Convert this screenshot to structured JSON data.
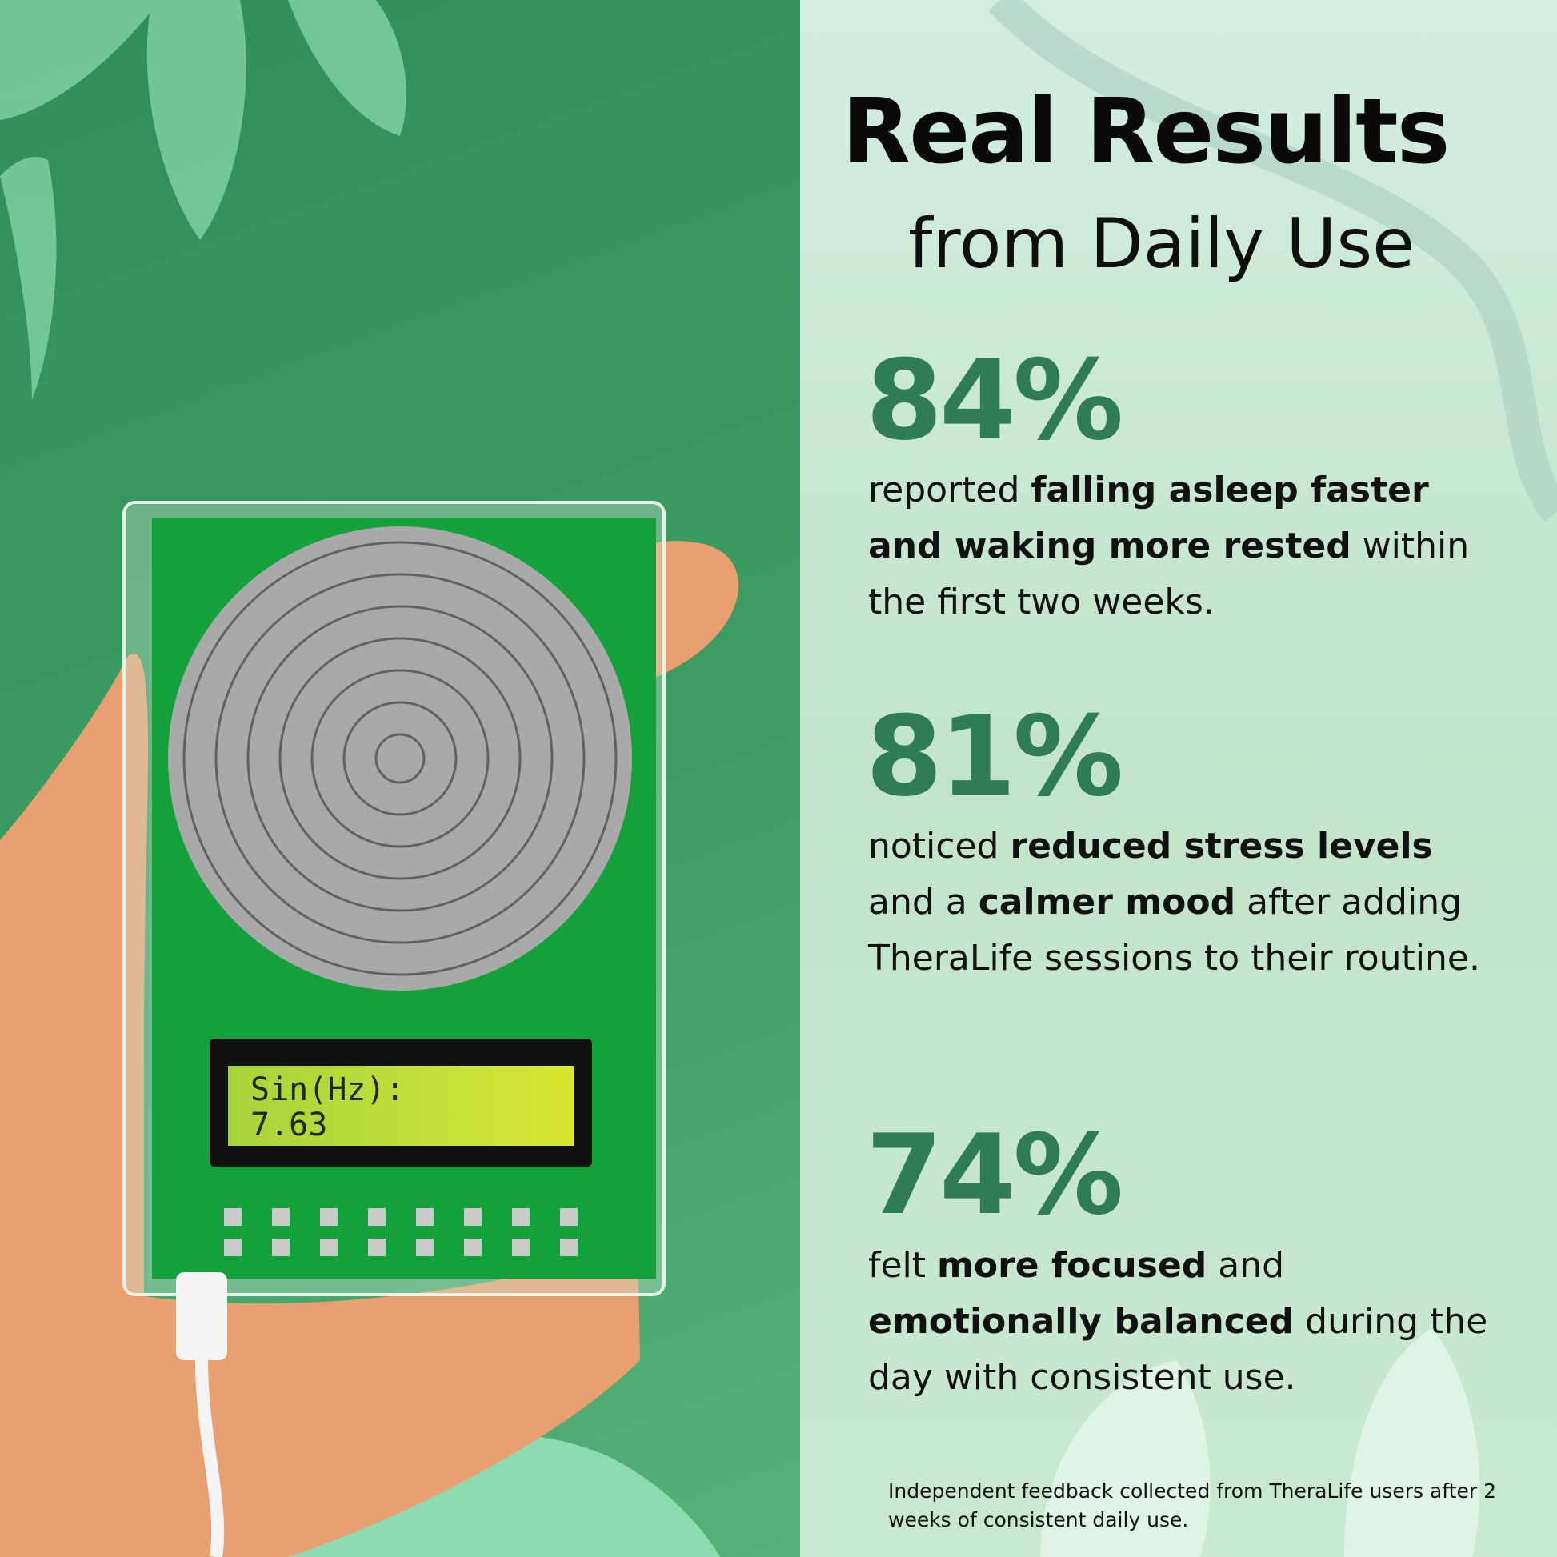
{
  "header": {
    "title": "Real Results",
    "subtitle": "from Daily Use"
  },
  "stats": [
    {
      "value": "84%",
      "pre": "reported ",
      "bold1": "falling asleep faster and waking more rested",
      "mid": "",
      "bold2": "",
      "post": " within the first two weeks."
    },
    {
      "value": "81%",
      "pre": "noticed ",
      "bold1": "reduced stress levels",
      "mid": " and a ",
      "bold2": "calmer mood",
      "post": " after adding TheraLife sessions to their routine."
    },
    {
      "value": "74%",
      "pre": "felt ",
      "bold1": "more focused",
      "mid": " and ",
      "bold2": "emotionally balanced",
      "post": " during the day with consistent use."
    }
  ],
  "footnote": "Independent feedback collected from TheraLife users after 2 weeks of consistent daily use.",
  "device": {
    "lcd_line1": "Sin(Hz):",
    "lcd_line2": "7.63"
  },
  "colors": {
    "accent": "#2e7d58",
    "left_bg": "#3d9d63",
    "right_bg": "#c8e8d2"
  }
}
